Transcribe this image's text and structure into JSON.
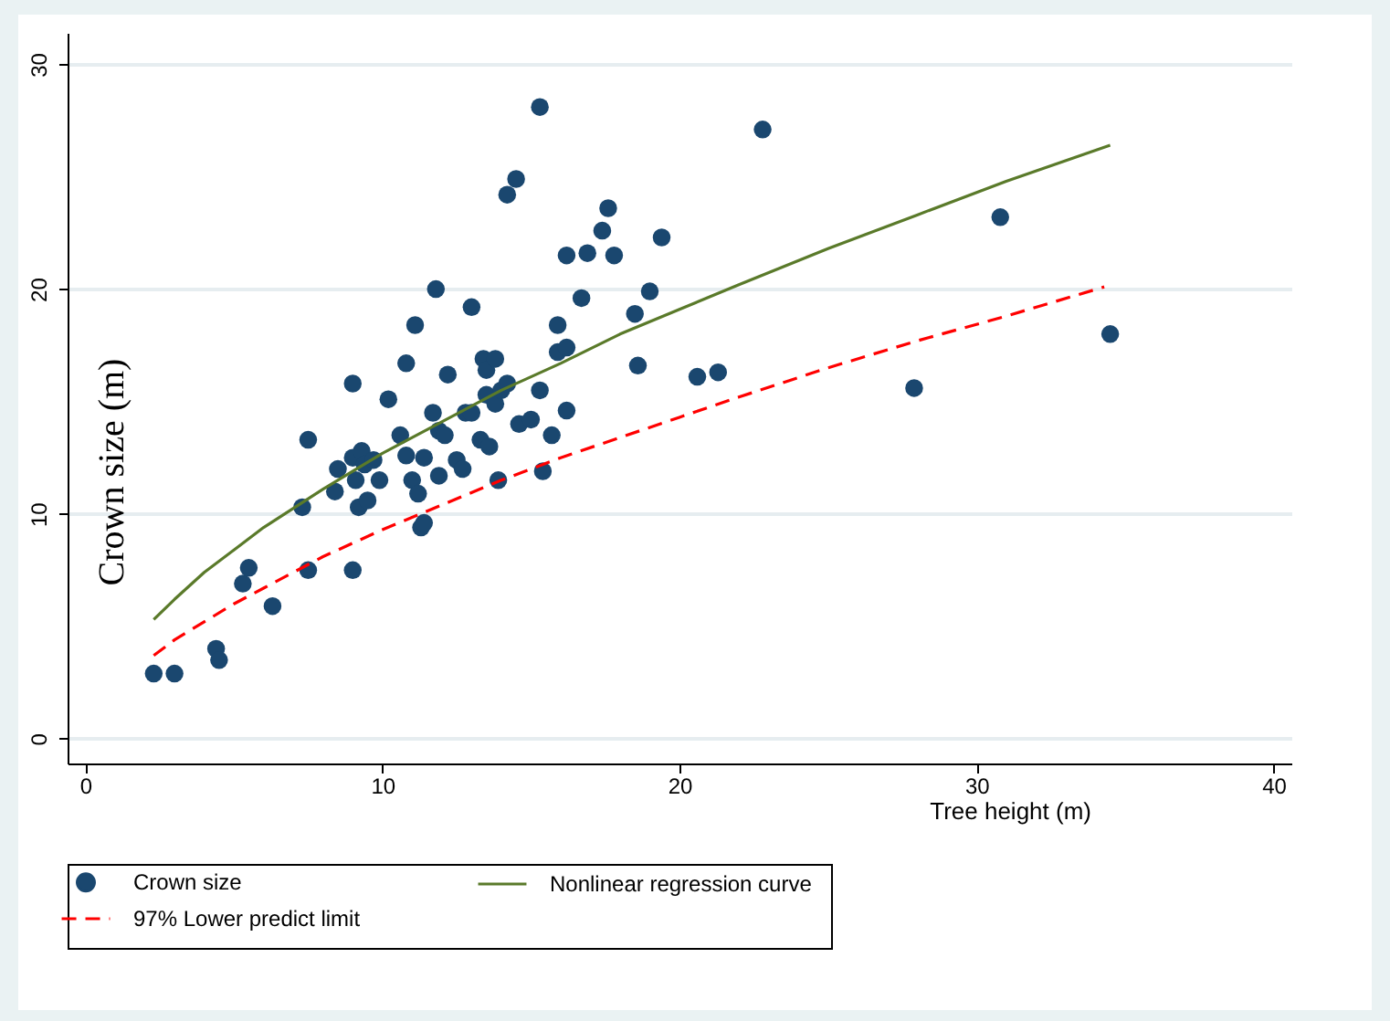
{
  "chart_data": {
    "type": "scatter",
    "xlabel": "Tree height (m)",
    "ylabel": "Crown size (m)",
    "xlim": [
      -0.6,
      40.6
    ],
    "ylim": [
      -1.1,
      31.4
    ],
    "xticks": [
      0,
      10,
      20,
      30,
      40
    ],
    "yticks": [
      0,
      10,
      20,
      30
    ],
    "grid": "y",
    "legend": "bottom",
    "series": [
      {
        "name": "Crown size",
        "marker": "circle",
        "color": "#1a476f",
        "x": [
          2.3,
          3.0,
          4.4,
          4.5,
          5.3,
          5.5,
          6.3,
          7.3,
          7.5,
          7.5,
          8.4,
          8.5,
          9.0,
          9.0,
          9.0,
          9.1,
          9.2,
          9.3,
          9.4,
          9.5,
          9.7,
          9.9,
          10.2,
          10.6,
          10.8,
          10.8,
          11.0,
          11.1,
          11.2,
          11.3,
          11.4,
          11.4,
          11.7,
          11.8,
          11.9,
          11.9,
          12.1,
          12.2,
          12.5,
          12.7,
          12.8,
          13.0,
          13.0,
          13.3,
          13.4,
          13.5,
          13.5,
          13.6,
          13.8,
          13.8,
          13.9,
          14.0,
          14.2,
          14.2,
          14.5,
          14.6,
          15.0,
          15.3,
          15.3,
          15.4,
          15.7,
          15.9,
          15.9,
          16.2,
          16.2,
          16.2,
          16.7,
          16.9,
          17.4,
          17.6,
          17.8,
          18.5,
          18.6,
          19.0,
          19.4,
          20.6,
          21.3,
          22.8,
          27.9,
          30.8,
          34.5
        ],
        "values": [
          2.9,
          2.9,
          4.0,
          3.5,
          6.9,
          7.6,
          5.9,
          10.3,
          13.3,
          7.5,
          11.0,
          12.0,
          12.5,
          15.8,
          7.5,
          11.5,
          10.3,
          12.8,
          12.2,
          10.6,
          12.4,
          11.5,
          15.1,
          13.5,
          16.7,
          12.6,
          11.5,
          18.4,
          10.9,
          9.4,
          12.5,
          9.6,
          14.5,
          20.0,
          11.7,
          13.7,
          13.5,
          16.2,
          12.4,
          12.0,
          14.5,
          19.2,
          14.5,
          13.3,
          16.9,
          15.3,
          16.4,
          13.0,
          16.9,
          14.9,
          11.5,
          15.5,
          15.8,
          24.2,
          24.9,
          14.0,
          14.2,
          28.1,
          15.5,
          11.9,
          13.5,
          17.2,
          18.4,
          17.4,
          21.5,
          14.6,
          19.6,
          21.6,
          22.6,
          23.6,
          21.5,
          18.9,
          16.6,
          19.9,
          22.3,
          16.1,
          16.3,
          27.1,
          15.6,
          23.2,
          18.0
        ]
      },
      {
        "name": "Nonlinear regression curve",
        "type": "line",
        "line_style": "solid",
        "color": "#5a7a2a",
        "x": [
          2.3,
          3,
          4,
          5,
          6,
          8,
          10,
          12,
          14,
          16,
          18,
          20,
          22,
          25,
          28,
          31,
          34.5
        ],
        "values": [
          5.3,
          6.2,
          7.4,
          8.4,
          9.4,
          11.1,
          12.7,
          14.1,
          15.5,
          16.7,
          18.0,
          19.1,
          20.2,
          21.8,
          23.3,
          24.8,
          26.4
        ]
      },
      {
        "name": "97% Lower predict limit",
        "type": "line",
        "line_style": "dashed",
        "color": "#ff0000",
        "x": [
          2.3,
          3,
          4,
          5,
          6,
          8,
          10,
          12,
          14,
          16,
          18,
          20,
          22,
          25,
          28,
          31,
          34.3
        ],
        "values": [
          3.7,
          4.4,
          5.2,
          6.0,
          6.7,
          8.1,
          9.3,
          10.4,
          11.5,
          12.5,
          13.4,
          14.3,
          15.2,
          16.5,
          17.7,
          18.8,
          20.1
        ]
      }
    ]
  }
}
